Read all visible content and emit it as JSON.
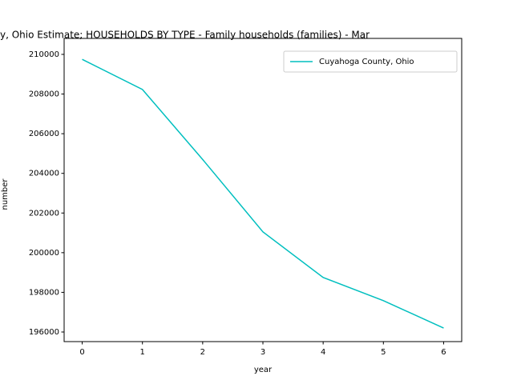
{
  "chart_data": {
    "type": "line",
    "title": "y, Ohio Estimate; HOUSEHOLDS BY TYPE - Family households (families) - Mar",
    "x_label": "year",
    "y_label": "number",
    "x": [
      0,
      1,
      2,
      3,
      4,
      5,
      6
    ],
    "series": [
      {
        "name": "Cuyahoga County, Ohio",
        "color": "#00bfbf",
        "values": [
          209750,
          208230,
          204700,
          201050,
          198750,
          197580,
          196200
        ]
      }
    ],
    "xlim": [
      -0.3,
      6.3
    ],
    "xticks": [
      0,
      1,
      2,
      3,
      4,
      5,
      6
    ],
    "ylim": [
      195516,
      210806
    ],
    "yticks": [
      196000,
      198000,
      200000,
      202000,
      204000,
      206000,
      208000,
      210000
    ],
    "legend": "upper right",
    "grid": false
  }
}
